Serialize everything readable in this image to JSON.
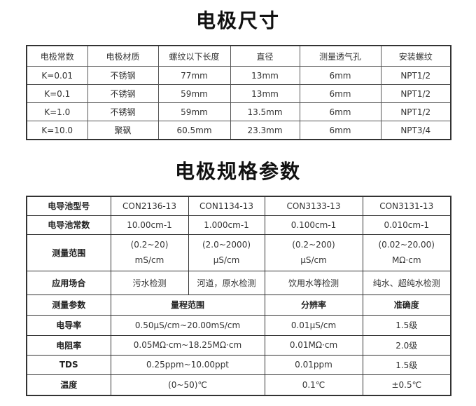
{
  "dimensions": {
    "title": "电极尺寸",
    "headers": [
      "电极常数",
      "电极材质",
      "螺纹以下长度",
      "直径",
      "测量透气孔",
      "安装螺纹"
    ],
    "rows": [
      [
        "K=0.01",
        "不锈钢",
        "77mm",
        "13mm",
        "6mm",
        "NPT1/2"
      ],
      [
        "K=0.1",
        "不锈钢",
        "59mm",
        "13mm",
        "6mm",
        "NPT1/2"
      ],
      [
        "K=1.0",
        "不锈钢",
        "59mm",
        "13.5mm",
        "6mm",
        "NPT1/2"
      ],
      [
        "K=10.0",
        "聚砜",
        "60.5mm",
        "23.3mm",
        "6mm",
        "NPT3/4"
      ]
    ]
  },
  "specs": {
    "title": "电极规格参数",
    "model_label": "电导池型号",
    "models": [
      "CON2136-13",
      "CON1134-13",
      "CON3133-13",
      "CON3131-13"
    ],
    "constant_label": "电导池常数",
    "constants": [
      "10.00cm-1",
      "1.000cm-1",
      "0.100cm-1",
      "0.010cm-1"
    ],
    "range_label": "测量范围",
    "ranges": [
      [
        "(0.2~20)",
        "mS/cm"
      ],
      [
        "(2.0~2000)",
        "μS/cm"
      ],
      [
        "(0.2~200)",
        "μS/cm"
      ],
      [
        "(0.02~20.00)",
        "MΩ·cm"
      ]
    ],
    "application_label": "应用场合",
    "applications": [
      "污水检测",
      "河道，原水检测",
      "饮用水等检测",
      "纯水、超纯水检测"
    ],
    "param_headers": [
      "测量参数",
      "量程范围",
      "分辨率",
      "准确度"
    ],
    "params": [
      [
        "电导率",
        "0.50μS/cm~20.00mS/cm",
        "0.01μS/cm",
        "1.5级"
      ],
      [
        "电阻率",
        "0.05MΩ·cm~18.25MΩ·cm",
        "0.01MΩ·cm",
        "2.0级"
      ],
      [
        "TDS",
        "0.25ppm~10.00ppt",
        "0.01ppm",
        "1.5级"
      ],
      [
        "温度",
        "(0~50)℃",
        "0.1℃",
        "±0.5℃"
      ]
    ]
  }
}
